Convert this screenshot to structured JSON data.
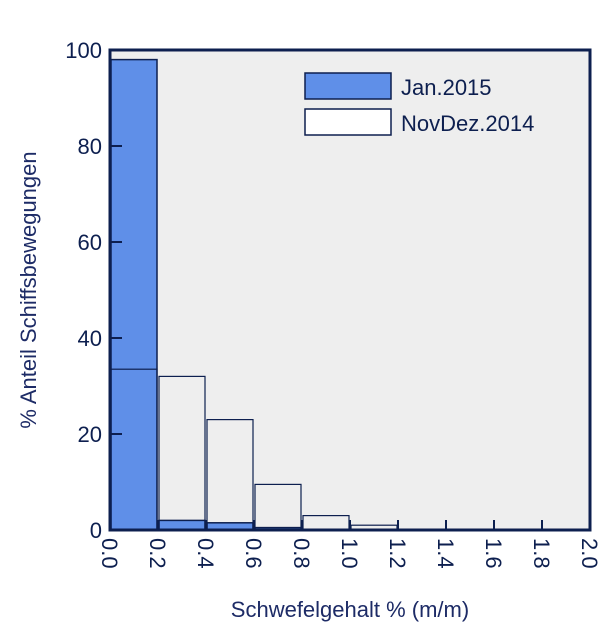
{
  "chart_data": {
    "type": "bar",
    "xlabel": "Schwefelgehalt % (m/m)",
    "ylabel": "% Anteil Schiffsbewegungen",
    "xlim": [
      0.0,
      2.0
    ],
    "ylim": [
      0,
      100
    ],
    "x_ticks": [
      "0.0",
      "0.2",
      "0.4",
      "0.6",
      "0.8",
      "1.0",
      "1.2",
      "1.4",
      "1.6",
      "1.8",
      "2.0"
    ],
    "y_ticks": [
      "0",
      "20",
      "40",
      "60",
      "80",
      "100"
    ],
    "bin_edges": [
      0.0,
      0.2,
      0.4,
      0.6,
      0.8,
      1.0,
      1.2
    ],
    "series": [
      {
        "name": "Jan.2015",
        "values": [
          98,
          2,
          1.5,
          0.5,
          0,
          0
        ],
        "color": "#5f8fe8",
        "style": "filled"
      },
      {
        "name": "NovDez.2014",
        "values": [
          33.5,
          32,
          23,
          9.5,
          3,
          1
        ],
        "color": "#ffffff",
        "style": "outline"
      }
    ],
    "legend": {
      "placement": "top-right"
    },
    "plot_background": "#eeeeee",
    "axis_color": "#0d1f4f",
    "grid": false
  }
}
